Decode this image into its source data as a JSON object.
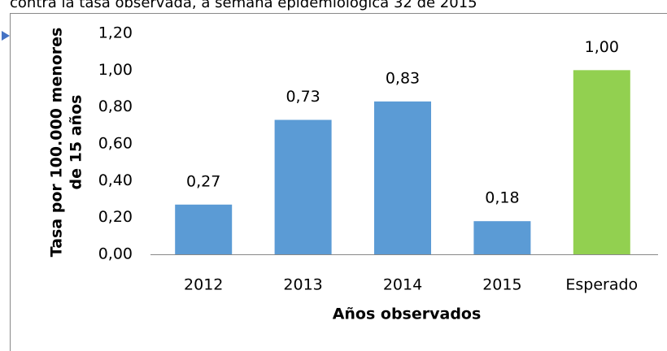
{
  "chart_data": {
    "type": "bar",
    "title": "contra la tasa observada, a semana epidemiológica 32 de 2015",
    "ylabel": [
      "Tasa por 100.000 menores",
      "de 15 años"
    ],
    "xlabel": "Años observados",
    "categories": [
      "2012",
      "2013",
      "2014",
      "2015",
      "Esperado"
    ],
    "values": [
      0.27,
      0.73,
      0.83,
      0.18,
      1.0
    ],
    "value_labels": [
      "0,27",
      "0,73",
      "0,83",
      "0,18",
      "1,00"
    ],
    "colors": [
      "#5b9bd5",
      "#5b9bd5",
      "#5b9bd5",
      "#5b9bd5",
      "#92d050"
    ],
    "ylim": [
      0,
      1.2
    ],
    "yticks": [
      {
        "value": 0,
        "label": "0,00"
      },
      {
        "value": 0.2,
        "label": "0,20"
      },
      {
        "value": 0.4,
        "label": "0,40"
      },
      {
        "value": 0.6,
        "label": "0,60"
      },
      {
        "value": 0.8,
        "label": "0,80"
      },
      {
        "value": 1.0,
        "label": "1,00"
      },
      {
        "value": 1.2,
        "label": "1,20"
      }
    ],
    "grid": false
  }
}
